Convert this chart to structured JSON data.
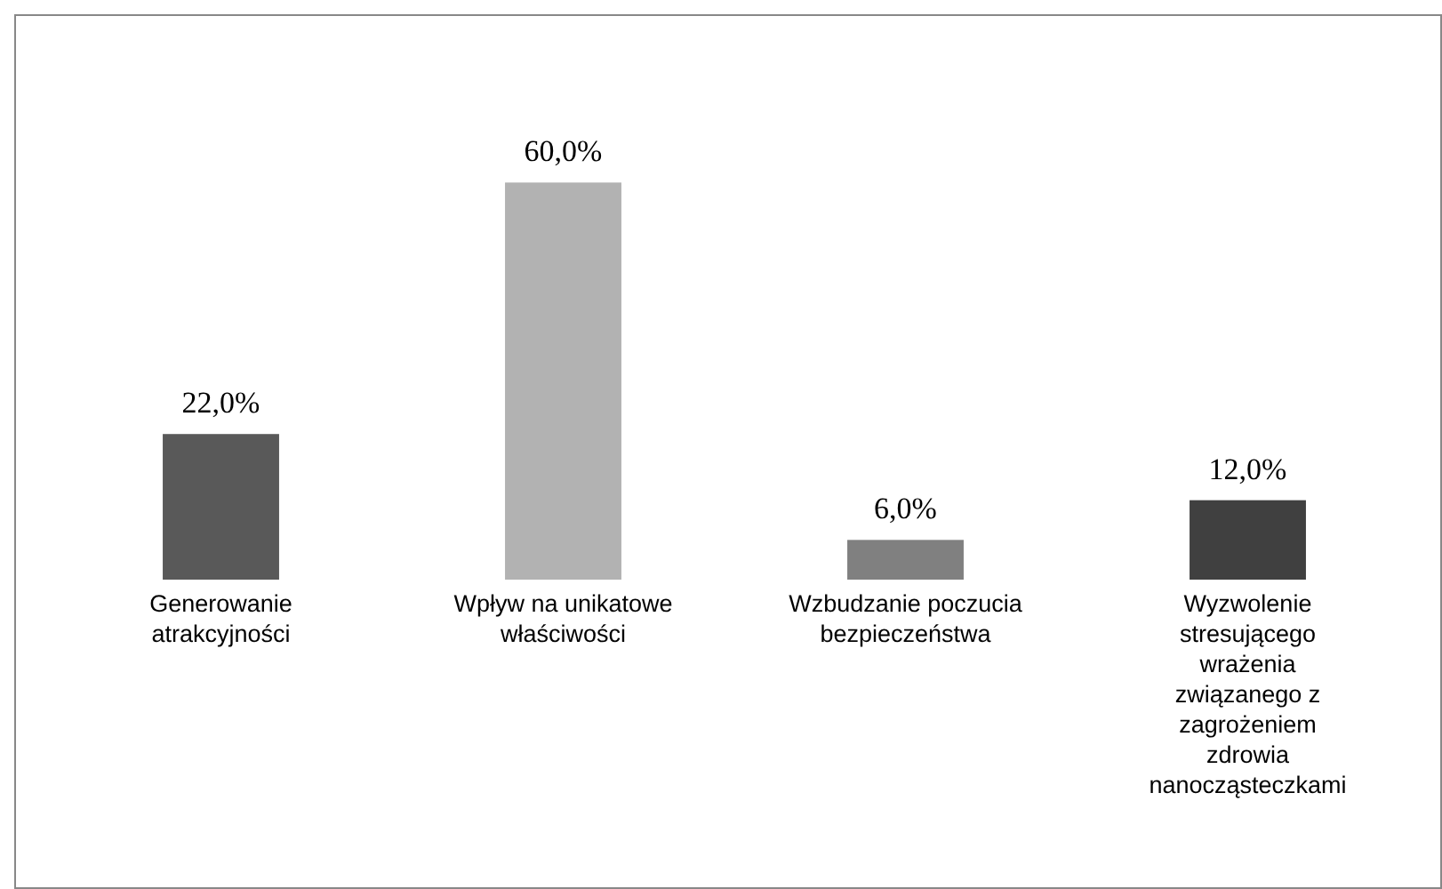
{
  "chart_data": {
    "type": "bar",
    "categories": [
      "Generowanie atrakcyjności",
      "Wpływ na unikatowe właściwości",
      "Wzbudzanie poczucia bezpieczeństwa",
      "Wyzwolenie stresującego wrażenia związanego z zagrożeniem zdrowia nanocząsteczkami"
    ],
    "values": [
      22,
      60,
      6,
      12
    ],
    "colors": [
      "#595959",
      "#b2b2b2",
      "#808080",
      "#404040"
    ],
    "value_labels": [
      "22,0%",
      "60,0%",
      "6,0%",
      "12,0%"
    ]
  }
}
